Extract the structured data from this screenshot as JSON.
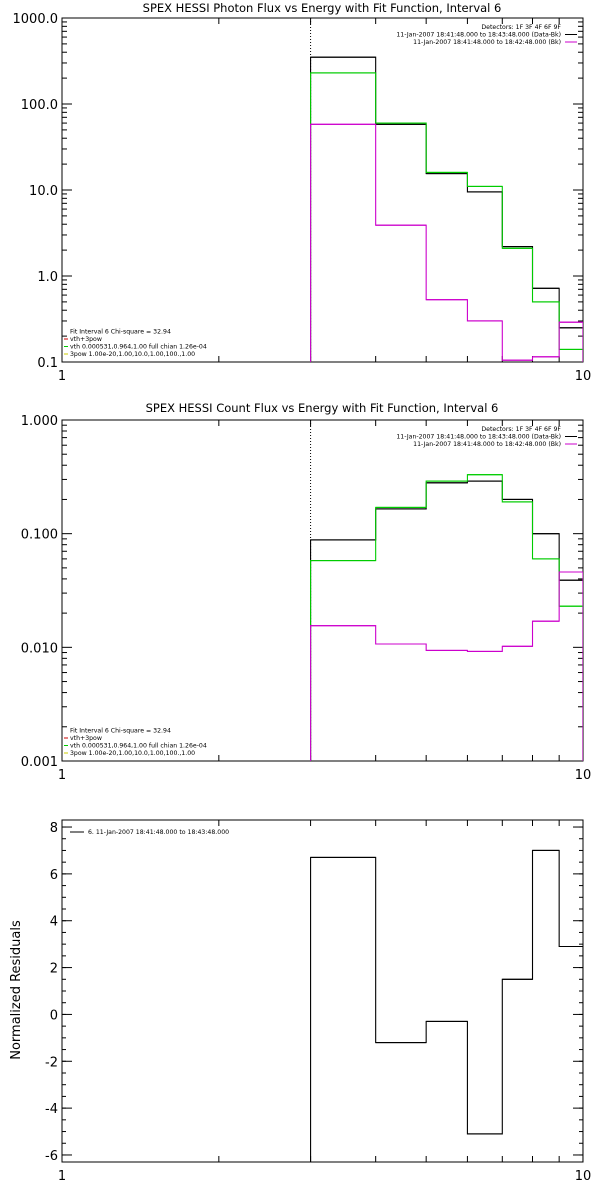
{
  "chart_data": [
    {
      "type": "line",
      "step": true,
      "title": "SPEX HESSI Photon Flux vs Energy with Fit Function, Interval 6",
      "xscale": "log",
      "yscale": "log",
      "xlim": [
        1,
        10
      ],
      "ylim": [
        0.1,
        1000
      ],
      "xticks": [
        {
          "value": 1,
          "label": "1"
        },
        {
          "value": 10,
          "label": "10"
        }
      ],
      "yticks": [
        {
          "value": 0.1,
          "label": "0.1"
        },
        {
          "value": 1,
          "label": "1.0"
        },
        {
          "value": 10,
          "label": "10.0"
        },
        {
          "value": 100,
          "label": "100.0"
        },
        {
          "value": 1000,
          "label": "1000.0"
        }
      ],
      "ylabel": "",
      "vline": {
        "x": 3,
        "style": "dotted"
      },
      "edges": [
        3,
        4,
        5,
        6,
        7,
        8,
        9,
        10
      ],
      "series": [
        {
          "color": "#000000",
          "values": [
            350,
            58,
            15.5,
            9.5,
            2.2,
            0.72,
            0.25
          ]
        },
        {
          "color": "#00cc00",
          "values": [
            230,
            60,
            16,
            11,
            2.1,
            0.5,
            0.14
          ]
        },
        {
          "color": "#cc00cc",
          "values": [
            58,
            3.9,
            0.53,
            0.3,
            0.105,
            0.115,
            0.29
          ]
        }
      ],
      "legend_top": {
        "position": "top-right",
        "lines": [
          {
            "text": "Detectors: 1F 3F 4F 6F 9F",
            "color": null
          },
          {
            "text": "11-Jan-2007 18:41:48.000 to 18:43:48.000 (Data-Bk)",
            "color": "#000000"
          },
          {
            "text": "11-Jan-2007 18:41:48.000 to 18:42:48.000 (Bk)",
            "color": "#cc00cc"
          }
        ]
      },
      "legend_bottom": {
        "position": "bottom-left",
        "lines": [
          {
            "text": "Fit Interval 6   Chi-square = 32.94",
            "color": null
          },
          {
            "text": "vth+3pow",
            "color": "#cc0000"
          },
          {
            "text": "vth 0.000531,0.964,1.00  full chian 1.26e-04",
            "color": "#00cc00"
          },
          {
            "text": "3pow 1.00e-20,1.00,10.0,1.00,100.,1.00",
            "color": "#cccc00"
          }
        ]
      }
    },
    {
      "type": "line",
      "step": true,
      "title": "SPEX HESSI Count Flux vs Energy with Fit Function, Interval 6",
      "xscale": "log",
      "yscale": "log",
      "xlim": [
        1,
        10
      ],
      "ylim": [
        0.001,
        1
      ],
      "xticks": [
        {
          "value": 1,
          "label": "1"
        },
        {
          "value": 10,
          "label": "10"
        }
      ],
      "yticks": [
        {
          "value": 0.001,
          "label": "0.001"
        },
        {
          "value": 0.01,
          "label": "0.010"
        },
        {
          "value": 0.1,
          "label": "0.100"
        },
        {
          "value": 1,
          "label": "1.000"
        }
      ],
      "ylabel": "",
      "vline": {
        "x": 3,
        "style": "dotted"
      },
      "edges": [
        3,
        4,
        5,
        6,
        7,
        8,
        9,
        10
      ],
      "series": [
        {
          "color": "#000000",
          "values": [
            0.088,
            0.165,
            0.28,
            0.29,
            0.2,
            0.1,
            0.039
          ]
        },
        {
          "color": "#00cc00",
          "values": [
            0.058,
            0.17,
            0.29,
            0.33,
            0.19,
            0.06,
            0.023
          ]
        },
        {
          "color": "#cc00cc",
          "values": [
            0.0155,
            0.0107,
            0.0094,
            0.0092,
            0.0102,
            0.017,
            0.046
          ]
        }
      ],
      "legend_top": {
        "position": "top-right",
        "lines": [
          {
            "text": "Detectors: 1F 3F 4F 6F 9F",
            "color": null
          },
          {
            "text": "11-Jan-2007 18:41:48.000 to 18:43:48.000 (Data-Bk)",
            "color": "#000000"
          },
          {
            "text": "11-Jan-2007 18:41:48.000 to 18:42:48.000 (Bk)",
            "color": "#cc00cc"
          }
        ]
      },
      "legend_bottom": {
        "position": "bottom-left",
        "lines": [
          {
            "text": "Fit Interval 6   Chi-square = 32.94",
            "color": null
          },
          {
            "text": "vth+3pow",
            "color": "#cc0000"
          },
          {
            "text": "vth 0.000531,0.964,1.00  full chian 1.26e-04",
            "color": "#00cc00"
          },
          {
            "text": "3pow 1.00e-20,1.00,10.0,1.00,100.,1.00",
            "color": "#cccc00"
          }
        ]
      }
    },
    {
      "type": "line",
      "step": true,
      "title": "",
      "xscale": "log",
      "yscale": "linear",
      "xlim": [
        1,
        10
      ],
      "ylim": [
        -6.3,
        8.3
      ],
      "xticks": [
        {
          "value": 1,
          "label": "1"
        },
        {
          "value": 10,
          "label": "10"
        }
      ],
      "yticks": [
        {
          "value": -6,
          "label": "-6"
        },
        {
          "value": -4,
          "label": "-4"
        },
        {
          "value": -2,
          "label": "-2"
        },
        {
          "value": 0,
          "label": "0"
        },
        {
          "value": 2,
          "label": "2"
        },
        {
          "value": 4,
          "label": "4"
        },
        {
          "value": 6,
          "label": "6"
        },
        {
          "value": 8,
          "label": "8"
        }
      ],
      "ylabel": "Normalized Residuals",
      "edges": [
        3,
        4,
        5,
        6,
        7,
        8,
        9,
        10
      ],
      "series": [
        {
          "color": "#000000",
          "values": [
            6.7,
            -1.2,
            -0.3,
            -5.1,
            1.5,
            7.0,
            2.9
          ]
        }
      ],
      "legend_top": {
        "position": "top-left",
        "lines": [
          {
            "text": "6. 11-Jan-2007 18:41:48.000 to 18:43:48.000",
            "color": "#000000"
          }
        ]
      }
    }
  ]
}
